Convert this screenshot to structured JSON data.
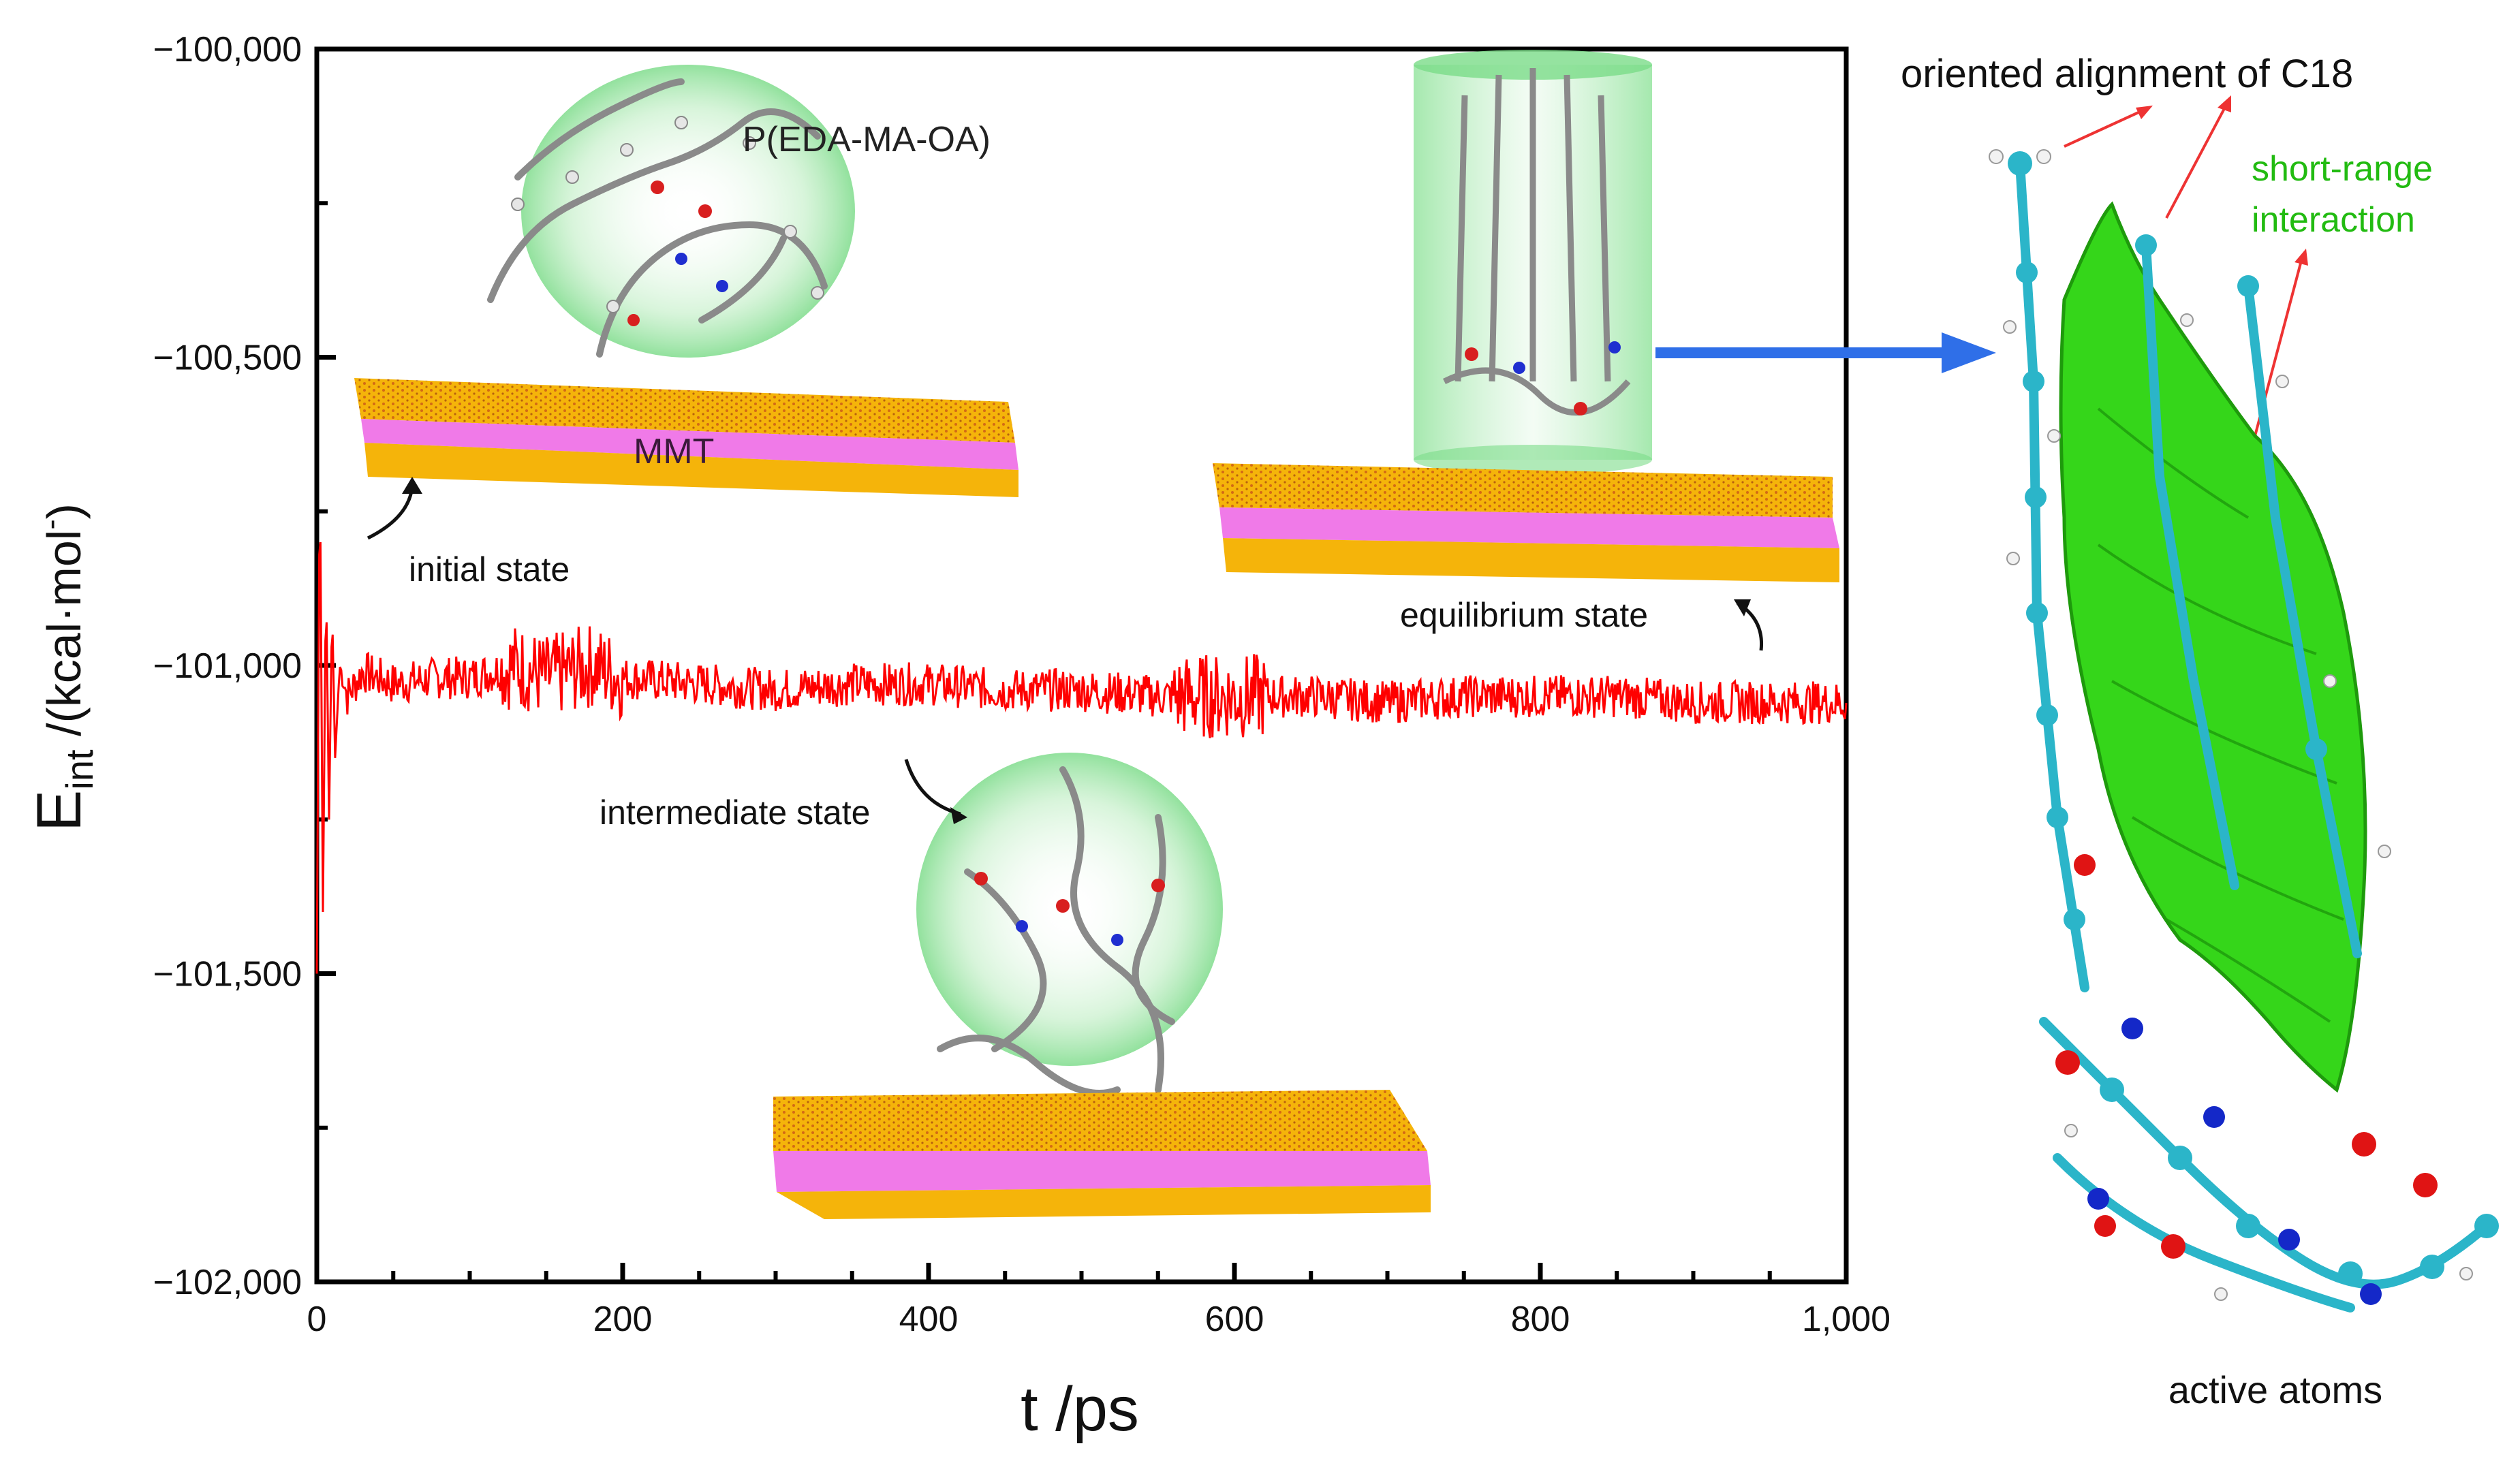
{
  "chart_data": {
    "type": "line",
    "xlabel": "t /ps",
    "ylabel_main": "E",
    "ylabel_sub": "int",
    "ylabel_rest": " /(kcal·mol",
    "ylabel_sup": "-",
    "ylabel_close": ")",
    "xlim": [
      0,
      1000
    ],
    "ylim": [
      -102000,
      -100000
    ],
    "x_ticks": [
      0,
      200,
      400,
      600,
      800,
      1000
    ],
    "x_tick_labels": [
      "0",
      "200",
      "400",
      "600",
      "800",
      "1,000"
    ],
    "y_ticks": [
      -100000,
      -100500,
      -101000,
      -101500,
      -102000
    ],
    "y_tick_labels": [
      "−100,000",
      "−100,500",
      "−101,000",
      "−101,500",
      "−102,000"
    ],
    "grid": false,
    "series": [
      {
        "color": "#ff0000",
        "x": [
          0,
          2,
          4,
          6,
          8,
          10,
          12,
          15,
          20,
          30,
          50,
          80,
          100,
          130,
          150,
          180,
          200,
          250,
          300,
          350,
          400,
          450,
          500,
          550,
          600,
          650,
          700,
          750,
          800,
          850,
          900,
          950,
          1000
        ],
        "y": [
          -101500,
          -100650,
          -101400,
          -100850,
          -101250,
          -100900,
          -101150,
          -101000,
          -101050,
          -101010,
          -101030,
          -101020,
          -101020,
          -101000,
          -101020,
          -101000,
          -101020,
          -101030,
          -101040,
          -101030,
          -101030,
          -101040,
          -101040,
          -101050,
          -101050,
          -101050,
          -101060,
          -101050,
          -101050,
          -101050,
          -101060,
          -101060,
          -101060
        ]
      }
    ],
    "annotations": [
      "P(EDA-MA-OA)",
      "MMT",
      "initial state",
      "equilibrium state",
      "intermediate state"
    ]
  },
  "side_panel": {
    "title": "oriented alignment of C18",
    "green_label_line1": "short-range",
    "green_label_line2": "interaction",
    "bottom_label": "active atoms"
  },
  "colors": {
    "series": "#ff0000",
    "arrow": "#2f6fe8",
    "interaction": "#22cc11",
    "carbon": "#2bb5c9",
    "oxygen": "#e01414",
    "nitrogen": "#1428c8",
    "hydrogen": "#f2f2f2",
    "mmt_yellow": "#f5b40a",
    "mmt_pink": "#f07ae8",
    "halo": "#9fe5a8"
  }
}
